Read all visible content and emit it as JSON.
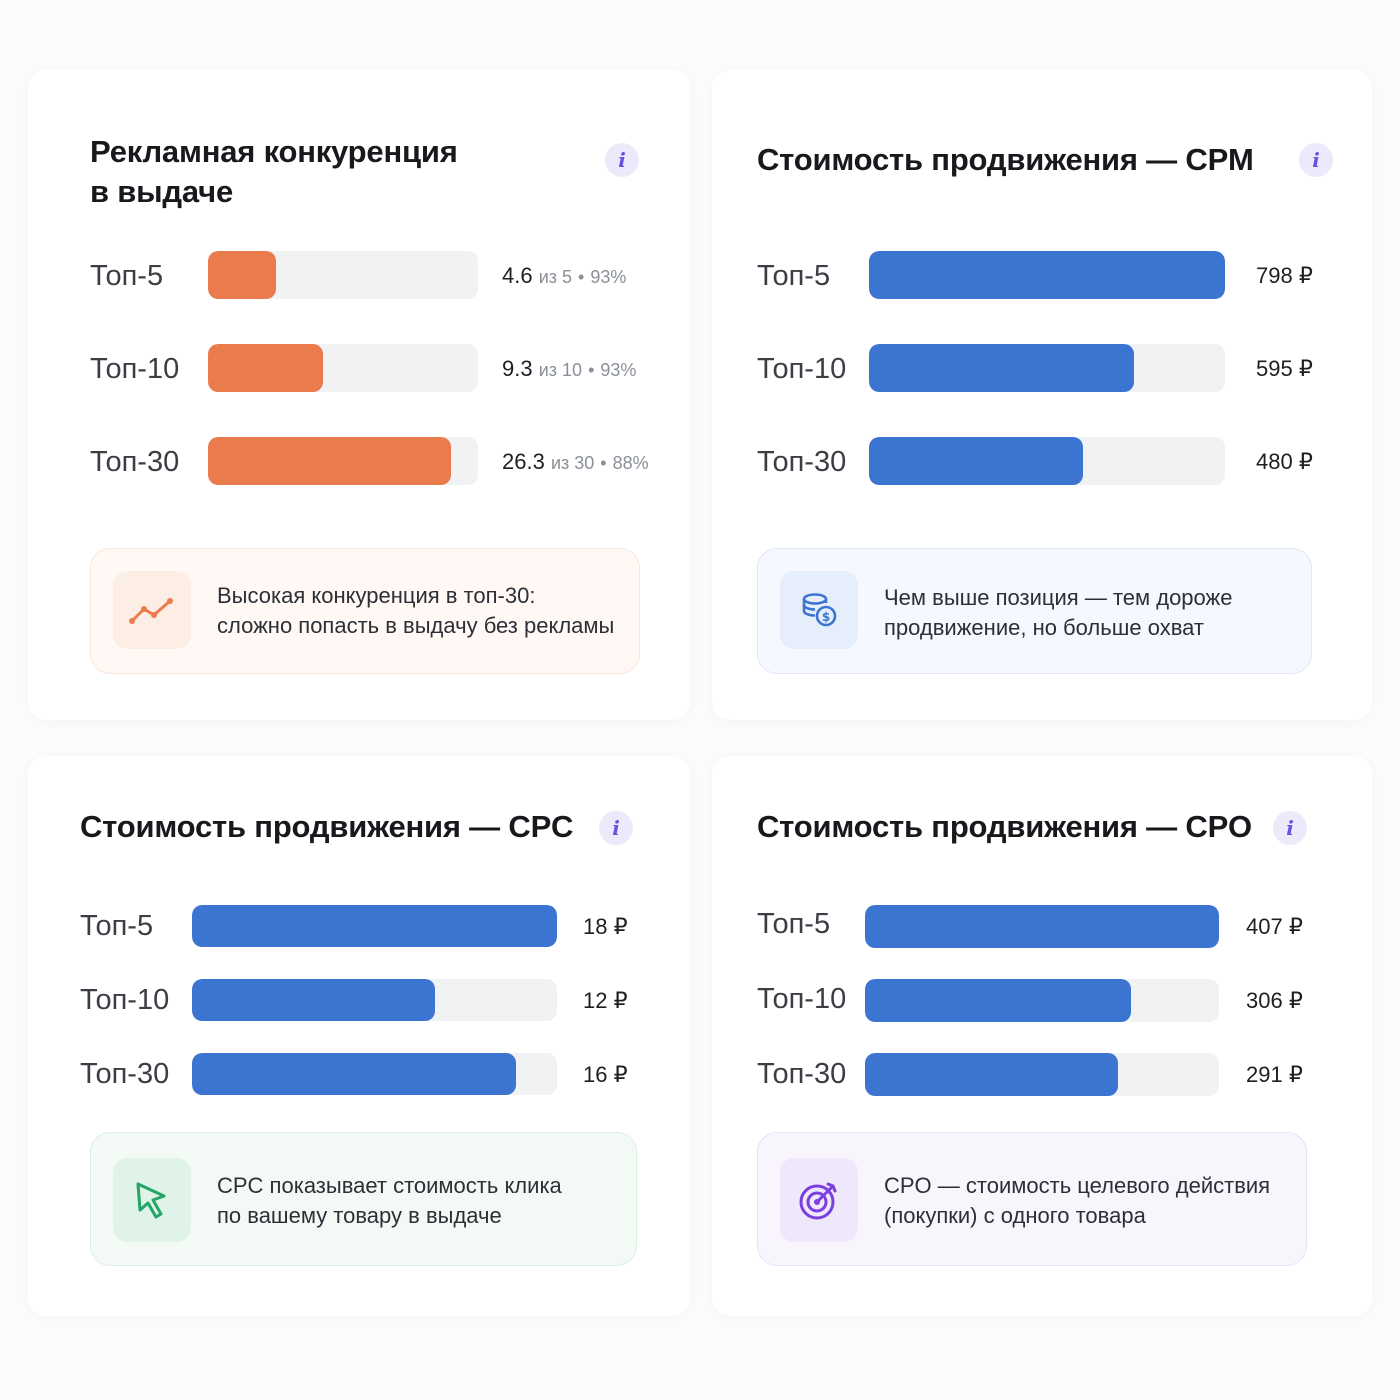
{
  "competition": {
    "title_line1": "Рекламная конкуренция",
    "title_line2": "в выдаче",
    "info": "i",
    "accent": "#e97b4d",
    "rows": [
      {
        "label": "Топ-5",
        "value": "4.6",
        "of": "из 5",
        "sep": "•",
        "percent": "93%",
        "fill": 0.25
      },
      {
        "label": "Топ-10",
        "value": "9.3",
        "of": "из 10",
        "sep": "•",
        "percent": "93%",
        "fill": 0.425
      },
      {
        "label": "Топ-30",
        "value": "26.3",
        "of": "из 30",
        "sep": "•",
        "percent": "88%",
        "fill": 0.9
      }
    ],
    "note": {
      "icon": "trend-up-icon",
      "line1": "Высокая конкуренция в топ-30:",
      "line2": "сложно попасть в выдачу без рекламы"
    }
  },
  "cpm": {
    "title": "Стоимость продвижения — CPM",
    "info": "i",
    "accent": "#3c74d2",
    "rows": [
      {
        "label": "Топ-5",
        "amount": "798 ₽",
        "value": 798
      },
      {
        "label": "Топ-10",
        "amount": "595 ₽",
        "value": 595
      },
      {
        "label": "Топ-30",
        "amount": "480 ₽",
        "value": 480
      }
    ],
    "scale_max": 798,
    "note": {
      "icon": "coins-icon",
      "line1": "Чем выше позиция — тем дороже",
      "line2": "продвижение, но больше охват"
    }
  },
  "cpc": {
    "title": "Стоимость продвижения — CPC",
    "info": "i",
    "accent": "#3c74d2",
    "rows": [
      {
        "label": "Топ-5",
        "amount": "18 ₽",
        "value": 18
      },
      {
        "label": "Топ-10",
        "amount": "12 ₽",
        "value": 12
      },
      {
        "label": "Топ-30",
        "amount": "16 ₽",
        "value": 16
      }
    ],
    "scale_max": 18,
    "note": {
      "icon": "cursor-icon",
      "line1": "CPC показывает стоимость клика",
      "line2": "по вашему товару в выдаче"
    }
  },
  "cpo": {
    "title": "Стоимость продвижения — CPO",
    "info": "i",
    "accent": "#3c74d2",
    "rows": [
      {
        "label": "Топ-5",
        "amount": "407 ₽",
        "value": 407
      },
      {
        "label": "Топ-10",
        "amount": "306 ₽",
        "value": 306
      },
      {
        "label": "Топ-30",
        "amount": "291 ₽",
        "value": 291
      }
    ],
    "scale_max": 407,
    "note": {
      "icon": "target-icon",
      "line1": "CPO — стоимость целевого действия",
      "line2": "(покупки) с одного товара"
    }
  }
}
